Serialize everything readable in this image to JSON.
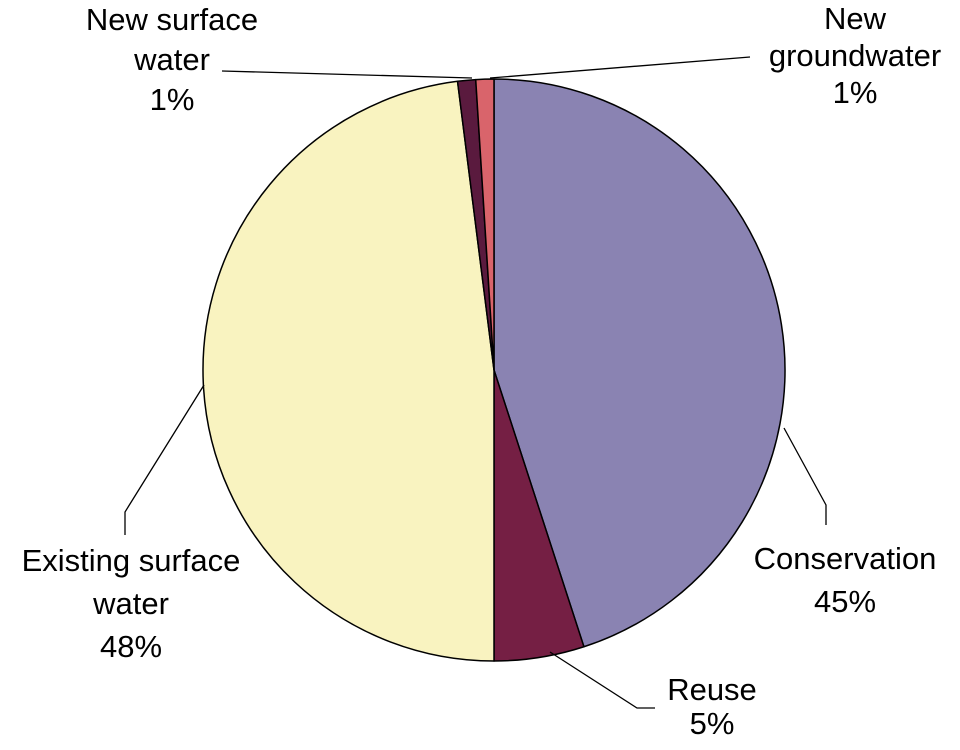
{
  "chart_data": {
    "type": "pie",
    "categories": [
      "Conservation",
      "Reuse",
      "Existing surface water",
      "New surface water",
      "New groundwater"
    ],
    "values": [
      45,
      5,
      48,
      1,
      1
    ],
    "value_labels": [
      "45%",
      "5%",
      "48%",
      "1%",
      "1%"
    ],
    "colors": [
      "#8a83b2",
      "#751f44",
      "#f9f3c0",
      "#5a1a3e",
      "#d9646b"
    ]
  }
}
